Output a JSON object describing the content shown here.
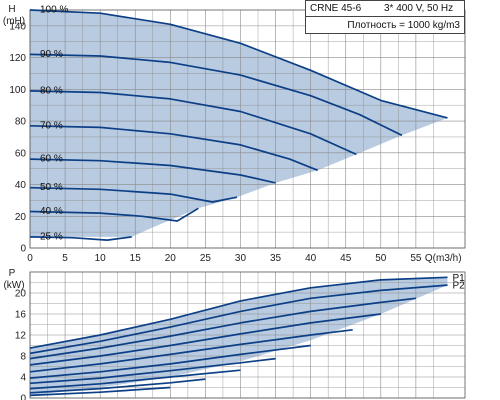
{
  "header": {
    "model": "CRNE 45-6",
    "supply": "3* 400 V, 50 Hz",
    "density": "Плотность = 1000 kg/m3"
  },
  "colors": {
    "curve": "#0d3f86",
    "area": "#b8cbe1",
    "grid": "#8a8a8a"
  },
  "chart_data": [
    {
      "type": "line",
      "ylabel": "H",
      "yunit": "(mH)",
      "xlabel": "Q(m3/h)",
      "xlim": [
        0,
        62
      ],
      "ylim": [
        0,
        150
      ],
      "x_ticks": [
        0,
        5,
        10,
        15,
        20,
        25,
        30,
        35,
        40,
        45,
        50,
        55
      ],
      "y_ticks": [
        0,
        20,
        40,
        60,
        80,
        100,
        120,
        140
      ],
      "grid": true,
      "operating_area": {
        "upper": [
          [
            0,
            150
          ],
          [
            10,
            148
          ],
          [
            20,
            141
          ],
          [
            30,
            129
          ],
          [
            40,
            112
          ],
          [
            50,
            93
          ],
          [
            59.5,
            82
          ]
        ],
        "lower": [
          [
            59.5,
            82
          ],
          [
            53,
            71
          ],
          [
            46.5,
            59
          ],
          [
            41,
            49
          ],
          [
            35,
            41
          ],
          [
            29.5,
            32
          ],
          [
            24,
            25
          ],
          [
            17.5,
            13
          ],
          [
            14.5,
            7
          ],
          [
            0,
            7
          ]
        ]
      },
      "series": [
        {
          "name": "100 %",
          "x": [
            0,
            10,
            20,
            30,
            40,
            50,
            59.5
          ],
          "y": [
            150,
            148,
            141,
            129,
            112,
            93,
            82
          ]
        },
        {
          "name": "90 %",
          "x": [
            0,
            10,
            20,
            30,
            40,
            47,
            53
          ],
          "y": [
            122,
            121,
            117,
            109,
            96,
            84,
            71
          ]
        },
        {
          "name": "80 %",
          "x": [
            0,
            10,
            20,
            30,
            40,
            46.5
          ],
          "y": [
            99,
            98,
            94,
            86,
            72,
            59
          ]
        },
        {
          "name": "70 %",
          "x": [
            0,
            10,
            20,
            30,
            37,
            41
          ],
          "y": [
            77,
            76,
            72,
            65,
            56,
            49
          ]
        },
        {
          "name": "60 %",
          "x": [
            0,
            10,
            20,
            30,
            35
          ],
          "y": [
            56,
            55,
            52,
            46,
            41
          ]
        },
        {
          "name": "50 %",
          "x": [
            0,
            10,
            20,
            26,
            29.5
          ],
          "y": [
            38,
            37,
            34,
            29,
            32
          ]
        },
        {
          "name": "40 %",
          "x": [
            0,
            10,
            16,
            21,
            24
          ],
          "y": [
            23,
            22,
            20,
            17,
            25
          ]
        },
        {
          "name": "25 %",
          "x": [
            0,
            6,
            11,
            14.5
          ],
          "y": [
            7,
            6.5,
            5,
            7
          ]
        }
      ]
    },
    {
      "type": "line",
      "ylabel": "P",
      "yunit": "(kW)",
      "xlim": [
        0,
        62
      ],
      "ylim": [
        0,
        24
      ],
      "x_ticks": [
        0,
        5,
        10,
        15,
        20,
        25,
        30,
        35,
        40,
        45,
        50,
        55
      ],
      "y_ticks": [
        0,
        4,
        8,
        12,
        16,
        20
      ],
      "grid": true,
      "operating_area": {
        "upper": [
          [
            0,
            9.5
          ],
          [
            10,
            12
          ],
          [
            20,
            15
          ],
          [
            30,
            18.5
          ],
          [
            40,
            21
          ],
          [
            50,
            22.5
          ],
          [
            59.5,
            23
          ]
        ],
        "lower": [
          [
            59.5,
            21.5
          ],
          [
            50,
            16
          ],
          [
            40,
            11
          ],
          [
            30,
            7
          ],
          [
            20,
            4
          ],
          [
            10,
            2
          ],
          [
            0,
            0.5
          ]
        ]
      },
      "series": [
        {
          "name": "P1",
          "x": [
            0,
            10,
            20,
            30,
            40,
            50,
            59.5
          ],
          "y": [
            9.5,
            12,
            15,
            18.5,
            21,
            22.5,
            23
          ]
        },
        {
          "name": "P2",
          "x": [
            0,
            10,
            20,
            30,
            40,
            50,
            59.5
          ],
          "y": [
            8.5,
            10.8,
            13.5,
            16.5,
            19,
            20.5,
            21.5
          ]
        },
        {
          "name": "",
          "x": [
            0,
            10,
            20,
            30,
            40,
            50,
            55
          ],
          "y": [
            7.5,
            9.5,
            11.8,
            14.3,
            16.5,
            18.2,
            19
          ]
        },
        {
          "name": "",
          "x": [
            0,
            10,
            20,
            30,
            40,
            50
          ],
          "y": [
            6.3,
            8,
            10,
            12.2,
            14.3,
            16
          ]
        },
        {
          "name": "",
          "x": [
            0,
            10,
            20,
            30,
            40,
            46
          ],
          "y": [
            5,
            6.5,
            8.3,
            10.2,
            12,
            13
          ]
        },
        {
          "name": "",
          "x": [
            0,
            10,
            20,
            30,
            40
          ],
          "y": [
            3.8,
            5,
            6.5,
            8.3,
            10
          ]
        },
        {
          "name": "",
          "x": [
            0,
            10,
            20,
            30,
            35
          ],
          "y": [
            2.8,
            3.8,
            5.2,
            6.7,
            7.5
          ]
        },
        {
          "name": "",
          "x": [
            0,
            10,
            20,
            30
          ],
          "y": [
            1.8,
            2.7,
            4,
            5.3
          ]
        },
        {
          "name": "",
          "x": [
            0,
            10,
            20,
            25
          ],
          "y": [
            1,
            1.8,
            2.9,
            3.6
          ]
        },
        {
          "name": "",
          "x": [
            0,
            10,
            20
          ],
          "y": [
            0.5,
            1.1,
            2
          ]
        }
      ]
    }
  ]
}
